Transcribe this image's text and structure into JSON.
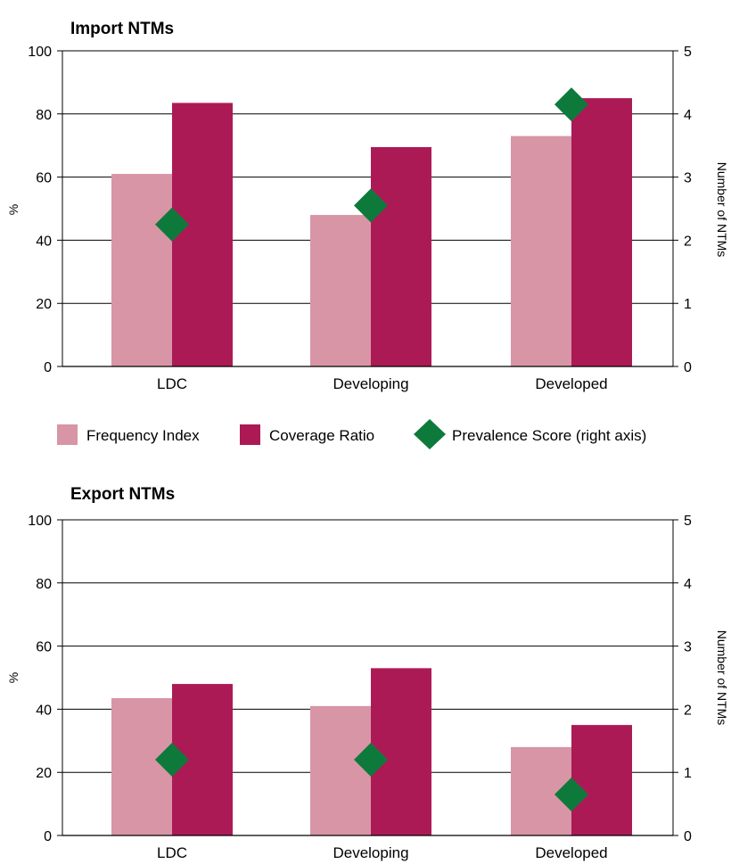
{
  "legend": {
    "frequency_label": "Frequency Index",
    "coverage_label": "Coverage Ratio",
    "prevalence_label": "Prevalence Score (right axis)"
  },
  "colors": {
    "frequency": "#d895a6",
    "coverage": "#ac1a56",
    "prevalence": "#0d7a3b"
  },
  "chart_data": [
    {
      "type": "bar",
      "title": "Import NTMs",
      "ylabel": "%",
      "y2label": "Number of NTMs",
      "ylim": [
        0,
        100
      ],
      "y2lim": [
        0,
        5
      ],
      "yticks": [
        "0",
        "20",
        "40",
        "60",
        "80",
        "100"
      ],
      "y2ticks": [
        "0",
        "1",
        "2",
        "3",
        "4",
        "5"
      ],
      "categories": [
        "LDC",
        "Developing",
        "Developed"
      ],
      "series": [
        {
          "name": "Frequency Index",
          "kind": "bar",
          "axis": "left",
          "values": [
            61,
            48,
            73
          ]
        },
        {
          "name": "Coverage Ratio",
          "kind": "bar",
          "axis": "left",
          "values": [
            83.5,
            69.5,
            85
          ]
        },
        {
          "name": "Prevalence Score (right axis)",
          "kind": "marker",
          "axis": "right",
          "values": [
            2.25,
            2.55,
            4.15
          ]
        }
      ]
    },
    {
      "type": "bar",
      "title": "Export NTMs",
      "ylabel": "%",
      "y2label": "Number of NTMs",
      "ylim": [
        0,
        100
      ],
      "y2lim": [
        0,
        5
      ],
      "yticks": [
        "0",
        "20",
        "40",
        "60",
        "80",
        "100"
      ],
      "y2ticks": [
        "0",
        "1",
        "2",
        "3",
        "4",
        "5"
      ],
      "categories": [
        "LDC",
        "Developing",
        "Developed"
      ],
      "series": [
        {
          "name": "Frequency Index",
          "kind": "bar",
          "axis": "left",
          "values": [
            43.5,
            41,
            28
          ]
        },
        {
          "name": "Coverage Ratio",
          "kind": "bar",
          "axis": "left",
          "values": [
            48,
            53,
            35
          ]
        },
        {
          "name": "Prevalence Score (right axis)",
          "kind": "marker",
          "axis": "right",
          "values": [
            1.2,
            1.2,
            0.65
          ]
        }
      ]
    }
  ]
}
